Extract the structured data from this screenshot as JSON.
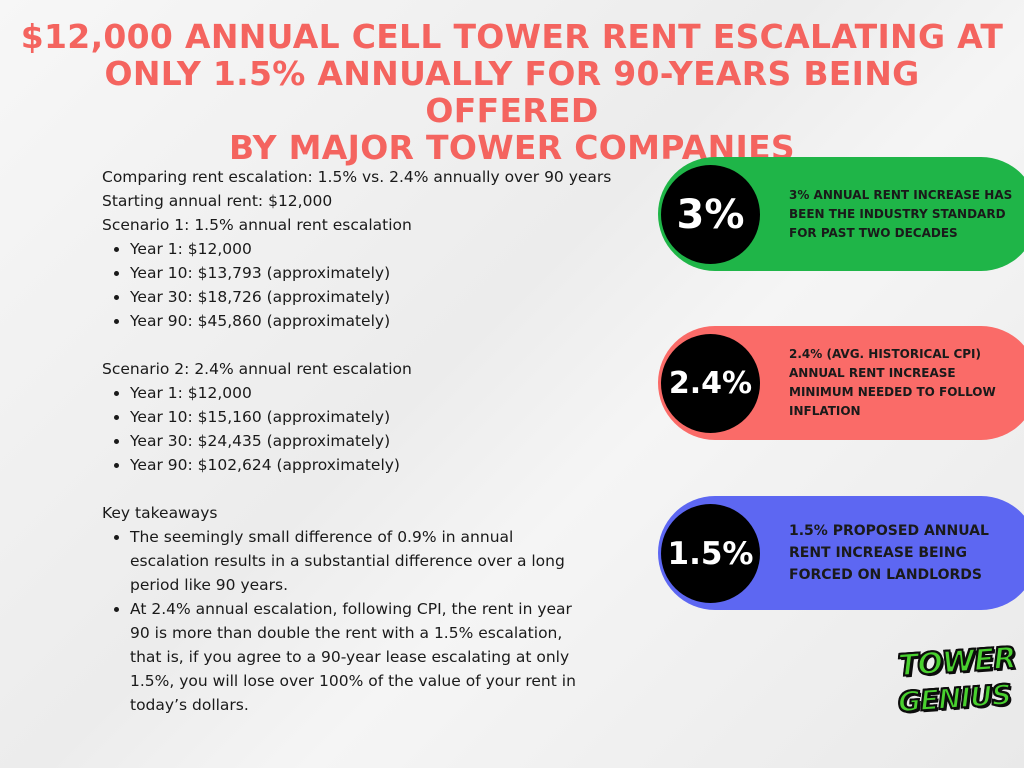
{
  "title": {
    "line1": "$12,000 ANNUAL CELL TOWER RENT ESCALATING AT",
    "line2": "ONLY 1.5% ANNUALLY FOR 90-YEARS BEING OFFERED",
    "line3": "BY MAJOR TOWER COMPANIES"
  },
  "content": {
    "intro": "Comparing rent escalation: 1.5% vs. 2.4% annually over 90 years",
    "starting_rent": "Starting annual rent: $12,000",
    "scenario1": {
      "heading": "Scenario 1: 1.5% annual rent escalation",
      "items": [
        "Year 1: $12,000",
        "Year 10: $13,793 (approximately)",
        "Year 30: $18,726 (approximately)",
        "Year 90: $45,860 (approximately)"
      ]
    },
    "scenario2": {
      "heading": "Scenario 2: 2.4% annual rent escalation",
      "items": [
        "Year 1: $12,000",
        "Year 10: $15,160 (approximately)",
        "Year 30: $24,435 (approximately)",
        "Year 90: $102,624 (approximately)"
      ]
    },
    "takeaways": {
      "heading": "Key takeaways",
      "items": [
        "The seemingly small difference of 0.9% in annual escalation results in a substantial difference over a long period like 90 years.",
        "At 2.4% annual escalation, following CPI, the rent in year 90 is more than double the rent with a 1.5% escalation, that is, if you agree to a 90-year lease escalating at only 1.5%, you will lose over 100% of the value of your rent in today’s dollars."
      ]
    }
  },
  "badges": [
    {
      "value": "3%",
      "text": "3% annual rent increase has been the industry standard for past two decades",
      "color": "#1fb548"
    },
    {
      "value": "2.4%",
      "text": "2.4% (avg. historical CPI) annual rent increase minimum needed to follow inflation",
      "color": "#fa6b68"
    },
    {
      "value": "1.5%",
      "text": "1.5% proposed annual rent increase being forced on landlords",
      "color": "#5d67f2"
    }
  ],
  "logo": {
    "line1": "TOWER",
    "line2": "GENIUS",
    "color": "#49d12f"
  }
}
